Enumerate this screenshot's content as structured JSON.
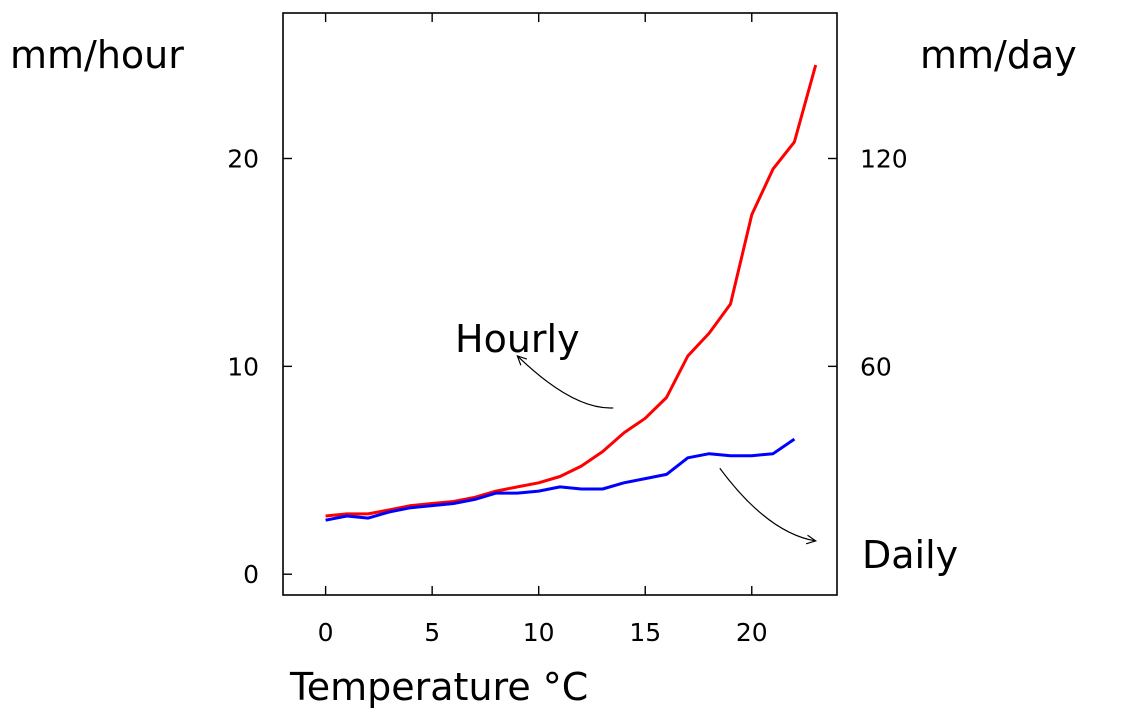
{
  "chart_data": {
    "type": "line",
    "title": "",
    "xlabel": "Temperature °C",
    "ylabel_left": "mm/hour",
    "ylabel_right": "mm/day",
    "xlim": [
      -2,
      24
    ],
    "ylim": [
      -1,
      27
    ],
    "x_ticks": [
      0,
      5,
      10,
      15,
      20
    ],
    "y_ticks_left": [
      0,
      10,
      20
    ],
    "y_ticks_right": [
      {
        "label": "60",
        "at": 10
      },
      {
        "label": "120",
        "at": 20
      }
    ],
    "grid": false,
    "legend": "none",
    "series": [
      {
        "name": "Hourly",
        "color": "#ff0000",
        "x": [
          0,
          1,
          2,
          3,
          4,
          5,
          6,
          7,
          8,
          9,
          10,
          11,
          12,
          13,
          14,
          15,
          16,
          17,
          18,
          19,
          20,
          21,
          22,
          23
        ],
        "y": [
          2.8,
          2.9,
          2.9,
          3.1,
          3.3,
          3.4,
          3.5,
          3.7,
          4.0,
          4.2,
          4.4,
          4.7,
          5.2,
          5.9,
          6.8,
          7.5,
          8.5,
          10.5,
          11.6,
          13.0,
          17.3,
          19.5,
          20.8,
          24.5
        ]
      },
      {
        "name": "Daily",
        "color": "#0000ff",
        "x": [
          0,
          1,
          2,
          3,
          4,
          5,
          6,
          7,
          8,
          9,
          10,
          11,
          12,
          13,
          14,
          15,
          16,
          17,
          18,
          19,
          20,
          21,
          22
        ],
        "y": [
          2.6,
          2.8,
          2.7,
          3.0,
          3.2,
          3.3,
          3.4,
          3.6,
          3.9,
          3.9,
          4.0,
          4.2,
          4.1,
          4.1,
          4.4,
          4.6,
          4.8,
          5.6,
          5.8,
          5.7,
          5.7,
          5.8,
          6.5
        ]
      }
    ],
    "annotations": [
      {
        "text": "Hourly",
        "arrow_from": [
          13.5,
          8.0
        ],
        "arrow_to": [
          9,
          10.5
        ]
      },
      {
        "text": "Daily",
        "arrow_from": [
          18.5,
          5.1
        ],
        "arrow_to": [
          23,
          1.6
        ]
      }
    ]
  }
}
